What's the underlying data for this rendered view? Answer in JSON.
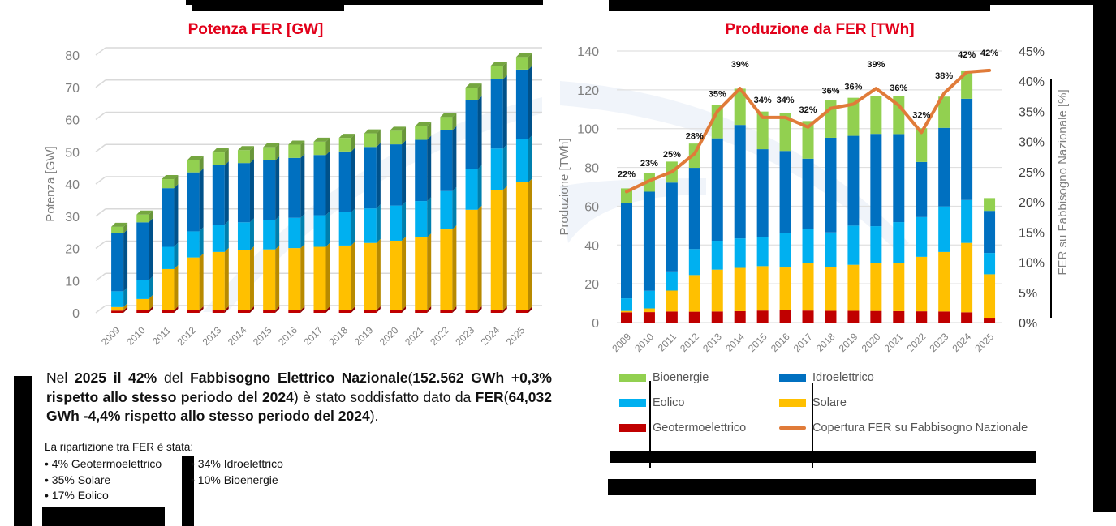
{
  "colors": {
    "geotermoelettrico": "#c00000",
    "solare": "#ffc000",
    "eolico": "#00b0f0",
    "idroelettrico": "#0070c0",
    "bioenergie": "#92d050",
    "copertura": "#e07b39",
    "title": "#e2001a"
  },
  "chart_data": [
    {
      "type": "bar",
      "stacked": true,
      "title": "Potenza FER [GW]",
      "xlabel": "",
      "ylabel": "Potenza [GW]",
      "ylim": [
        0,
        80
      ],
      "yticks": [
        0,
        10,
        20,
        30,
        40,
        50,
        60,
        70,
        80
      ],
      "grid": true,
      "categories": [
        "2009",
        "2010",
        "2011",
        "2012",
        "2013",
        "2014",
        "2015",
        "2016",
        "2017",
        "2018",
        "2019",
        "2020",
        "2021",
        "2022",
        "2023",
        "2024",
        "2025"
      ],
      "series": [
        {
          "name": "Geotermoelettrico",
          "color_key": "geotermoelettrico",
          "values": [
            0.7,
            0.8,
            0.8,
            0.8,
            0.8,
            0.8,
            0.8,
            0.8,
            0.8,
            0.8,
            0.8,
            0.8,
            0.8,
            0.8,
            0.8,
            0.8,
            0.8
          ]
        },
        {
          "name": "Solare",
          "color_key": "solare",
          "values": [
            1.1,
            3.5,
            12.8,
            16.4,
            18.1,
            18.6,
            18.9,
            19.3,
            19.7,
            20.1,
            20.9,
            21.6,
            22.6,
            25.1,
            31.2,
            37.3,
            39.7
          ]
        },
        {
          "name": "Eolico",
          "color_key": "eolico",
          "values": [
            4.9,
            5.8,
            6.9,
            8.1,
            8.5,
            8.7,
            9.1,
            9.4,
            9.8,
            10.3,
            10.7,
            10.9,
            11.3,
            11.9,
            12.6,
            12.9,
            13.4
          ]
        },
        {
          "name": "Idroelettrico",
          "color_key": "idroelettrico",
          "values": [
            18.0,
            18.0,
            18.2,
            18.3,
            18.4,
            18.4,
            18.5,
            18.6,
            18.7,
            18.9,
            19.1,
            19.0,
            19.0,
            18.9,
            21.4,
            21.5,
            21.6
          ]
        },
        {
          "name": "Bioenergie",
          "color_key": "bioenergie",
          "values": [
            2.0,
            2.4,
            2.8,
            3.8,
            4.0,
            4.0,
            4.1,
            4.1,
            4.1,
            4.2,
            4.2,
            4.2,
            4.2,
            4.1,
            3.9,
            4.2,
            3.9
          ]
        }
      ]
    },
    {
      "type": "bar",
      "stacked": true,
      "title": "Produzione da FER [TWh]",
      "xlabel": "",
      "ylabel": "Produzione [TWh]",
      "y2label": "FER su Fabbisogno Nazionale [%]",
      "ylim": [
        0,
        140
      ],
      "yticks": [
        0,
        20,
        40,
        60,
        80,
        100,
        120,
        140
      ],
      "y2lim": [
        0,
        45
      ],
      "y2ticks": [
        "0%",
        "5%",
        "10%",
        "15%",
        "20%",
        "25%",
        "30%",
        "35%",
        "40%",
        "45%"
      ],
      "grid": true,
      "categories": [
        "2009",
        "2010",
        "2011",
        "2012",
        "2013",
        "2014",
        "2015",
        "2016",
        "2017",
        "2018",
        "2019",
        "2020",
        "2021",
        "2022",
        "2023",
        "2024",
        "2025"
      ],
      "series": [
        {
          "name": "Geotermoelettrico",
          "color_key": "geotermoelettrico",
          "values": [
            5.3,
            5.4,
            5.7,
            5.6,
            5.7,
            5.9,
            6.2,
            6.3,
            6.2,
            6.1,
            6.1,
            6.0,
            5.9,
            5.8,
            5.7,
            5.3,
            2.5
          ]
        },
        {
          "name": "Solare",
          "color_key": "solare",
          "values": [
            0.7,
            1.9,
            10.8,
            18.9,
            21.6,
            22.3,
            22.9,
            22.1,
            24.4,
            22.7,
            23.7,
            24.9,
            25.0,
            28.1,
            30.7,
            35.8,
            22.4
          ]
        },
        {
          "name": "Eolico",
          "color_key": "eolico",
          "values": [
            6.5,
            9.1,
            9.9,
            13.4,
            14.9,
            15.2,
            14.8,
            17.7,
            17.7,
            17.7,
            20.2,
            18.8,
            20.9,
            20.5,
            23.5,
            22.1,
            11.0
          ]
        },
        {
          "name": "Idroelettrico",
          "color_key": "idroelettrico",
          "values": [
            49.1,
            51.1,
            45.8,
            41.9,
            52.8,
            58.5,
            45.5,
            42.4,
            36.2,
            48.8,
            46.3,
            47.6,
            45.4,
            28.4,
            40.5,
            52.2,
            21.7
          ]
        },
        {
          "name": "Bioenergie",
          "color_key": "bioenergie",
          "values": [
            7.6,
            9.4,
            10.8,
            12.5,
            17.1,
            18.7,
            19.4,
            19.5,
            19.4,
            19.2,
            19.6,
            19.6,
            19.4,
            17.4,
            16.1,
            14.6,
            6.6
          ]
        }
      ],
      "line": {
        "name": "Copertura FER su Fabbisogno Nazionale",
        "color_key": "copertura",
        "axis": "y2",
        "values": [
          21.7,
          23.5,
          25.0,
          28.0,
          35.0,
          38.8,
          34.0,
          34.0,
          32.4,
          35.5,
          36.2,
          38.8,
          36.0,
          31.5,
          38.0,
          41.5,
          41.8
        ],
        "labels": [
          "22%",
          "23%",
          "25%",
          "28%",
          "35%",
          "39%",
          "34%",
          "34%",
          "32%",
          "36%",
          "36%",
          "39%",
          "36%",
          "32%",
          "38%",
          "42%",
          "42%"
        ]
      },
      "legend": {
        "position": "bottom",
        "items": [
          {
            "label": "Bioenergie",
            "color_key": "bioenergie",
            "kind": "box"
          },
          {
            "label": "Idroelettrico",
            "color_key": "idroelettrico",
            "kind": "box"
          },
          {
            "label": "Eolico",
            "color_key": "eolico",
            "kind": "box"
          },
          {
            "label": "Solare",
            "color_key": "solare",
            "kind": "box"
          },
          {
            "label": "Geotermoelettrico",
            "color_key": "geotermoelettrico",
            "kind": "box"
          },
          {
            "label": "Copertura FER su Fabbisogno Nazionale",
            "color_key": "copertura",
            "kind": "line"
          }
        ]
      }
    }
  ],
  "summary": {
    "p1": "Nel ",
    "p2": "2025 il 42%",
    "p3": " del ",
    "p4": "Fabbisogno Elettrico Nazionale",
    "p5": "(",
    "p6": "152.562 GWh +0,3% rispetto allo stesso periodo del 2024",
    "p7": ") è stato soddisfatto dato da ",
    "p8": "FER",
    "p9": "(",
    "p10": "64,032 GWh -4,4% rispetto allo stesso periodo del 2024",
    "p11": ")."
  },
  "breakdown": {
    "intro": "La ripartizione tra FER è stata:",
    "left": [
      "4% Geotermoelettrico",
      "35% Solare",
      "17% Eolico"
    ],
    "right": [
      "34% Idroelettrico",
      "10% Bioenergie"
    ]
  }
}
